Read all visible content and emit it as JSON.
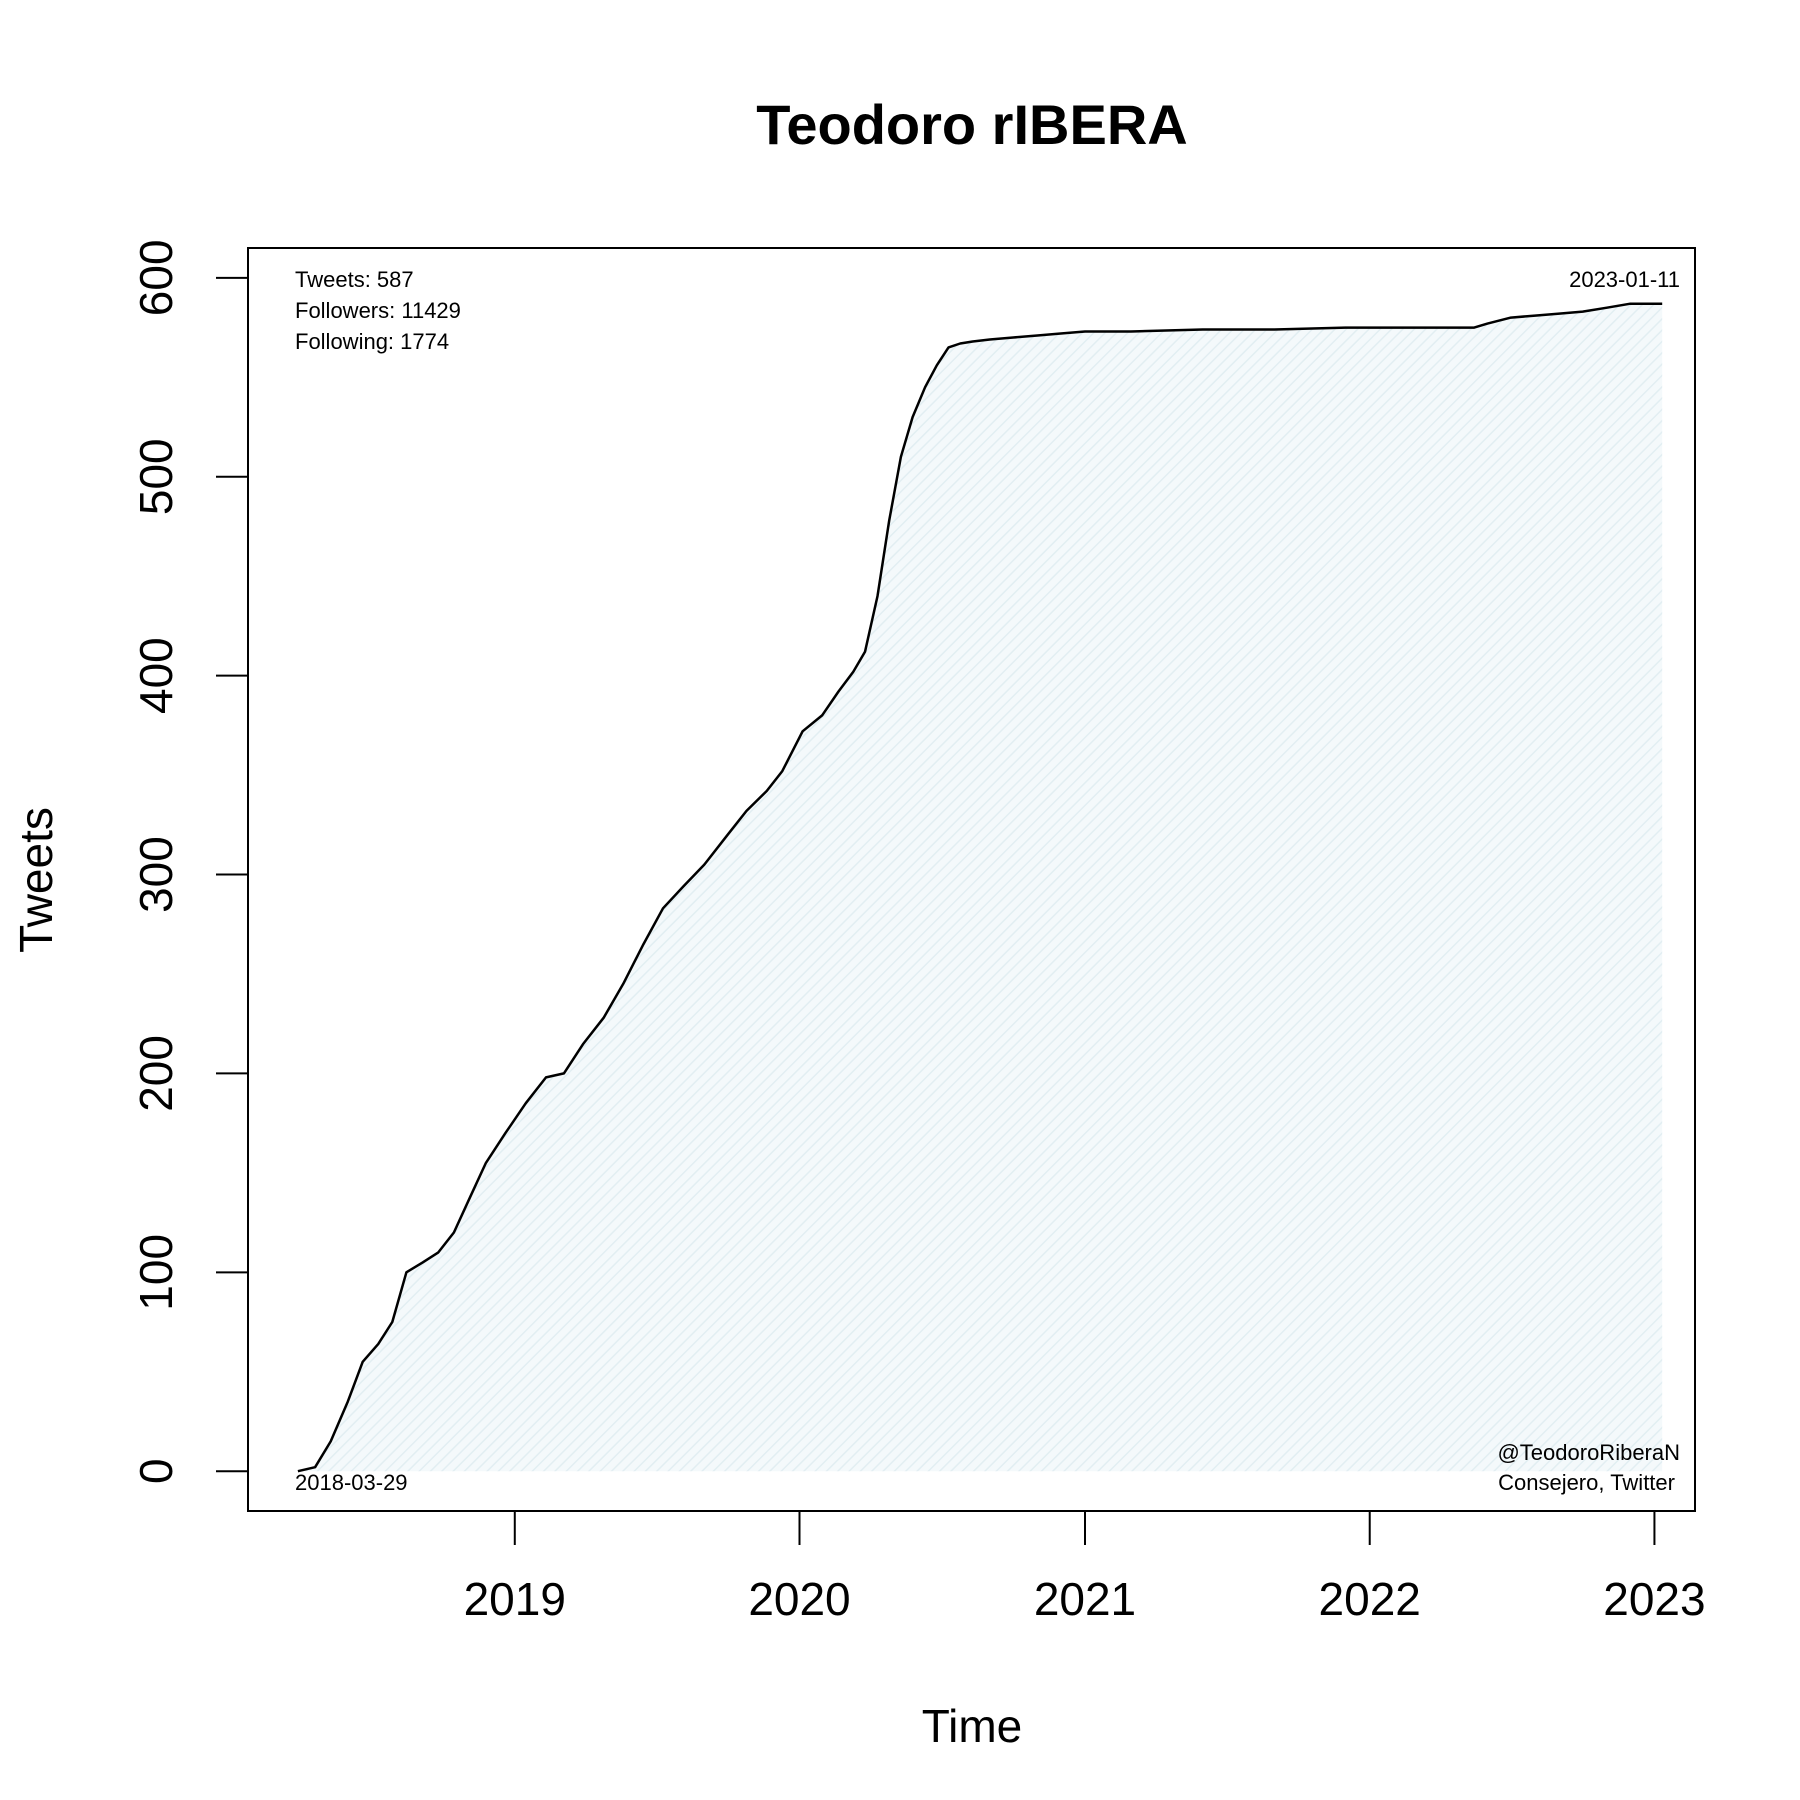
{
  "chart_data": {
    "type": "area",
    "title": "Teodoro rIBERA",
    "xlabel": "Time",
    "ylabel": "Tweets",
    "x_ticks": [
      "2019",
      "2020",
      "2021",
      "2022",
      "2023"
    ],
    "y_ticks": [
      "0",
      "100",
      "200",
      "300",
      "400",
      "500",
      "600"
    ],
    "ylim": [
      -20,
      615
    ],
    "xlim": [
      "2018-01-24",
      "2023-02-22"
    ],
    "grid": false,
    "line_color": "#000000",
    "fill_color": "#eaf4f7",
    "annotations": {
      "stats": [
        "Tweets: 587",
        "Followers: 11429",
        "Following: 1774"
      ],
      "end_date": "2023-01-11",
      "start_date": "2018-03-29",
      "handle": "@TeodoroRiberaN",
      "description": "Consejero, Twitter"
    },
    "series": [
      {
        "x": [
          "2018-03-29",
          "2018-04-20",
          "2018-05-10",
          "2018-06-01",
          "2018-06-20",
          "2018-07-10",
          "2018-07-28",
          "2018-08-15",
          "2018-09-05",
          "2018-09-25",
          "2018-10-15",
          "2018-11-05",
          "2018-11-25",
          "2018-12-20",
          "2019-01-15",
          "2019-02-10",
          "2019-03-05",
          "2019-03-30",
          "2019-04-25",
          "2019-05-20",
          "2019-06-15",
          "2019-07-10",
          "2019-08-05",
          "2019-09-01",
          "2019-10-01",
          "2019-10-25",
          "2019-11-20",
          "2019-12-10",
          "2020-01-05",
          "2020-01-30",
          "2020-02-20",
          "2020-03-10",
          "2020-03-25",
          "2020-04-10",
          "2020-04-25",
          "2020-05-10",
          "2020-05-25",
          "2020-06-10",
          "2020-06-25",
          "2020-07-10",
          "2020-07-25",
          "2020-08-10",
          "2020-09-01",
          "2020-10-01",
          "2020-11-01",
          "2020-12-01",
          "2021-01-01",
          "2021-03-01",
          "2021-06-01",
          "2021-09-01",
          "2021-12-01",
          "2022-03-01",
          "2022-05-15",
          "2022-06-01",
          "2022-07-01",
          "2022-08-01",
          "2022-09-01",
          "2022-10-01",
          "2022-11-01",
          "2022-12-01",
          "2023-01-11"
        ],
        "y": [
          0,
          2,
          15,
          35,
          55,
          64,
          75,
          100,
          105,
          110,
          120,
          138,
          155,
          170,
          185,
          198,
          200,
          215,
          228,
          245,
          265,
          283,
          294,
          305,
          320,
          332,
          342,
          352,
          372,
          380,
          392,
          402,
          412,
          440,
          478,
          510,
          530,
          545,
          556,
          565,
          567,
          568,
          569,
          570,
          571,
          572,
          573,
          573,
          574,
          574,
          575,
          575,
          575,
          577,
          580,
          581,
          582,
          583,
          585,
          587,
          587
        ]
      }
    ]
  }
}
